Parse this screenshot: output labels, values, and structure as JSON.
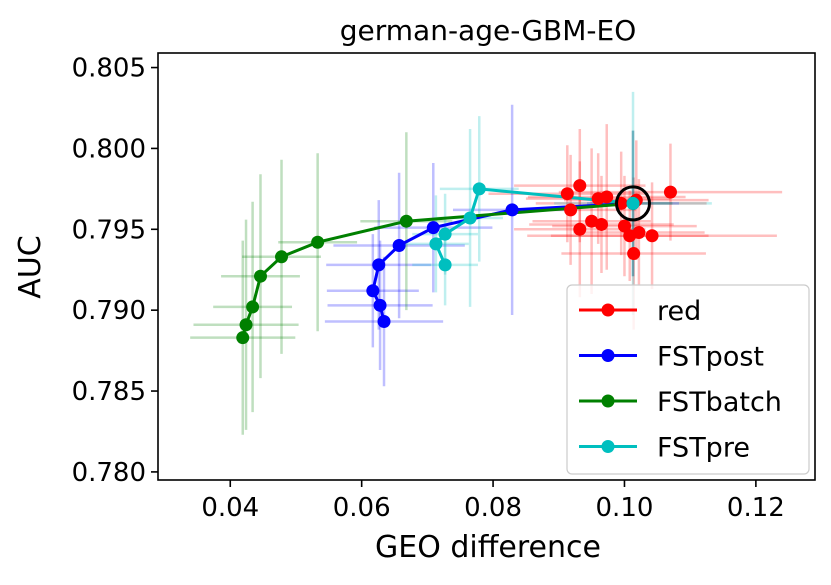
{
  "chart_data": {
    "type": "scatter",
    "title": "german-age-GBM-EO",
    "xlabel": "GEO difference",
    "ylabel": "AUC",
    "xlim": [
      0.029,
      0.129
    ],
    "ylim": [
      0.7795,
      0.8059
    ],
    "xticks": [
      0.04,
      0.06,
      0.08,
      0.1,
      0.12
    ],
    "xtick_labels": [
      "0.04",
      "0.06",
      "0.08",
      "0.10",
      "0.12"
    ],
    "yticks": [
      0.78,
      0.785,
      0.79,
      0.795,
      0.8,
      0.805
    ],
    "ytick_labels": [
      "0.780",
      "0.785",
      "0.790",
      "0.795",
      "0.800",
      "0.805"
    ],
    "grid": false,
    "legend_position": "lower-right",
    "colors": {
      "red": "#ff0000",
      "FSTpost": "#0000ff",
      "FSTbatch": "#008000",
      "FSTpre": "#00bfbf",
      "highlight": "#000000"
    },
    "series": [
      {
        "name": "red",
        "color": "#ff0000",
        "connected": false,
        "points": [
          {
            "x": 0.0913,
            "y": 0.7972,
            "xerr": 0.012,
            "yerr": 0.003
          },
          {
            "x": 0.0932,
            "y": 0.7977,
            "xerr": 0.01,
            "yerr": 0.0035
          },
          {
            "x": 0.096,
            "y": 0.7969,
            "xerr": 0.011,
            "yerr": 0.0028
          },
          {
            "x": 0.0973,
            "y": 0.797,
            "xerr": 0.012,
            "yerr": 0.0045
          },
          {
            "x": 0.0995,
            "y": 0.7966,
            "xerr": 0.013,
            "yerr": 0.0032
          },
          {
            "x": 0.1018,
            "y": 0.7968,
            "xerr": 0.011,
            "yerr": 0.0037
          },
          {
            "x": 0.107,
            "y": 0.7973,
            "xerr": 0.017,
            "yerr": 0.003
          },
          {
            "x": 0.0918,
            "y": 0.7962,
            "xerr": 0.01,
            "yerr": 0.0034
          },
          {
            "x": 0.095,
            "y": 0.7955,
            "xerr": 0.009,
            "yerr": 0.0045
          },
          {
            "x": 0.0965,
            "y": 0.7953,
            "xerr": 0.011,
            "yerr": 0.003
          },
          {
            "x": 0.0932,
            "y": 0.795,
            "xerr": 0.01,
            "yerr": 0.0042
          },
          {
            "x": 0.1,
            "y": 0.7952,
            "xerr": 0.011,
            "yerr": 0.0031
          },
          {
            "x": 0.1008,
            "y": 0.7946,
            "xerr": 0.012,
            "yerr": 0.0028
          },
          {
            "x": 0.1022,
            "y": 0.7948,
            "xerr": 0.01,
            "yerr": 0.0033
          },
          {
            "x": 0.1042,
            "y": 0.7946,
            "xerr": 0.019,
            "yerr": 0.0033
          },
          {
            "x": 0.1014,
            "y": 0.7935,
            "xerr": 0.011,
            "yerr": 0.0047
          }
        ]
      },
      {
        "name": "FSTpost",
        "color": "#0000ff",
        "connected": true,
        "points": [
          {
            "x": 0.0634,
            "y": 0.7893,
            "xerr": 0.009,
            "yerr": 0.004
          },
          {
            "x": 0.0628,
            "y": 0.7903,
            "xerr": 0.008,
            "yerr": 0.004
          },
          {
            "x": 0.0617,
            "y": 0.7912,
            "xerr": 0.007,
            "yerr": 0.0035
          },
          {
            "x": 0.0626,
            "y": 0.7928,
            "xerr": 0.008,
            "yerr": 0.004
          },
          {
            "x": 0.0657,
            "y": 0.794,
            "xerr": 0.01,
            "yerr": 0.0045
          },
          {
            "x": 0.0709,
            "y": 0.7951,
            "xerr": 0.009,
            "yerr": 0.004
          },
          {
            "x": 0.0829,
            "y": 0.7962,
            "xerr": 0.009,
            "yerr": 0.0065
          },
          {
            "x": 0.1013,
            "y": 0.7966,
            "xerr": 0.007,
            "yerr": 0.0045
          }
        ]
      },
      {
        "name": "FSTbatch",
        "color": "#008000",
        "connected": true,
        "points": [
          {
            "x": 0.0419,
            "y": 0.7883,
            "xerr": 0.008,
            "yerr": 0.006
          },
          {
            "x": 0.0424,
            "y": 0.7891,
            "xerr": 0.008,
            "yerr": 0.0065
          },
          {
            "x": 0.0434,
            "y": 0.7902,
            "xerr": 0.006,
            "yerr": 0.0065
          },
          {
            "x": 0.0446,
            "y": 0.7921,
            "xerr": 0.006,
            "yerr": 0.0063
          },
          {
            "x": 0.0478,
            "y": 0.7933,
            "xerr": 0.006,
            "yerr": 0.006
          },
          {
            "x": 0.0533,
            "y": 0.7942,
            "xerr": 0.006,
            "yerr": 0.0055
          },
          {
            "x": 0.0668,
            "y": 0.7955,
            "xerr": 0.007,
            "yerr": 0.0055
          },
          {
            "x": 0.1013,
            "y": 0.7966,
            "xerr": 0.006,
            "yerr": 0.0045
          }
        ]
      },
      {
        "name": "FSTpre",
        "color": "#00bfbf",
        "connected": true,
        "points": [
          {
            "x": 0.0727,
            "y": 0.7928,
            "xerr": 0.005,
            "yerr": 0.0025
          },
          {
            "x": 0.0713,
            "y": 0.7941,
            "xerr": 0.005,
            "yerr": 0.003
          },
          {
            "x": 0.0727,
            "y": 0.7947,
            "xerr": 0.005,
            "yerr": 0.0025
          },
          {
            "x": 0.0765,
            "y": 0.7957,
            "xerr": 0.005,
            "yerr": 0.0055
          },
          {
            "x": 0.0779,
            "y": 0.7975,
            "xerr": 0.006,
            "yerr": 0.0045
          },
          {
            "x": 0.1013,
            "y": 0.7966,
            "xerr": 0.012,
            "yerr": 0.0069
          }
        ]
      }
    ],
    "highlight_point": {
      "x": 0.1013,
      "y": 0.7966
    }
  }
}
